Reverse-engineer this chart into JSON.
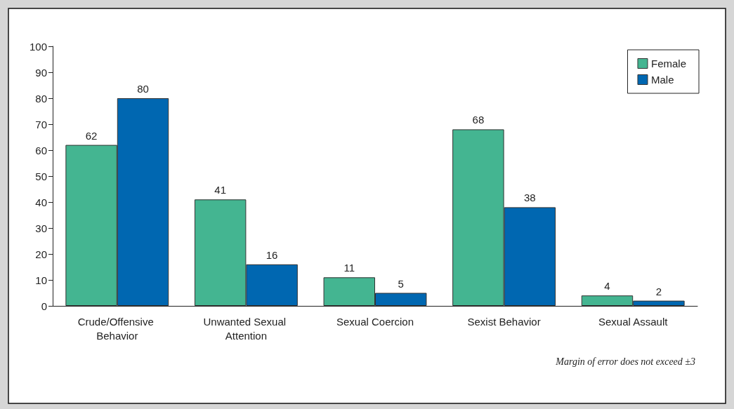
{
  "chart_data": {
    "type": "bar",
    "categories": [
      "Crude/Offensive Behavior",
      "Unwanted Sexual Attention",
      "Sexual Coercion",
      "Sexist Behavior",
      "Sexual Assault"
    ],
    "series": [
      {
        "name": "Female",
        "color": "#44b591",
        "values": [
          62,
          41,
          11,
          68,
          4
        ]
      },
      {
        "name": "Male",
        "color": "#0067b1",
        "values": [
          80,
          16,
          5,
          38,
          2
        ]
      }
    ],
    "ylim": [
      0,
      100
    ],
    "yticks": [
      0,
      10,
      20,
      30,
      40,
      50,
      60,
      70,
      80,
      90,
      100
    ],
    "grid": false,
    "legend": "top right",
    "data_labels": true,
    "annotations": [
      "Margin of error does not exceed ±3"
    ]
  }
}
